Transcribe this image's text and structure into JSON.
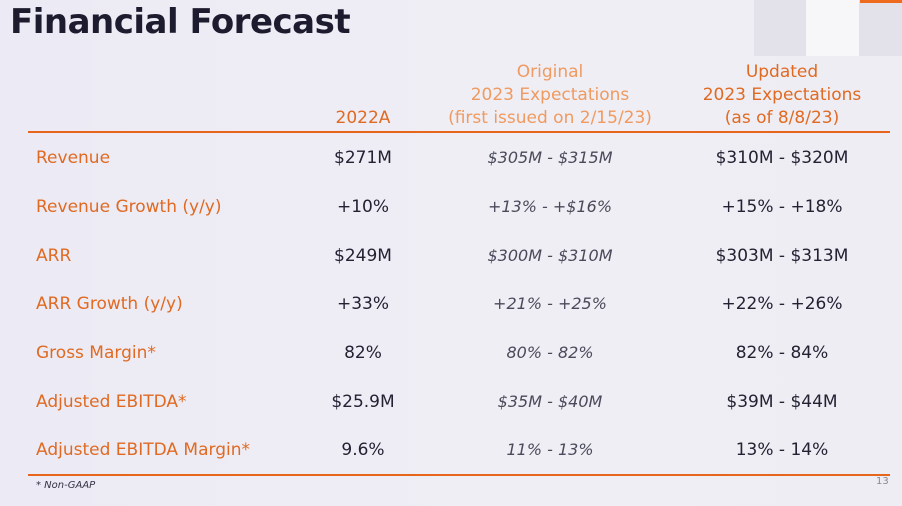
{
  "title": "Financial Forecast",
  "headers": {
    "col_2022": "2022A",
    "original": [
      "Original",
      "2023 Expectations",
      "(first issued on 2/15/23)"
    ],
    "updated": [
      "Updated",
      "2023 Expectations",
      "(as of 8/8/23)"
    ]
  },
  "rows": [
    {
      "label": "Revenue",
      "actual": "$271M",
      "original": "$305M - $315M",
      "updated": "$310M - $320M"
    },
    {
      "label": "Revenue Growth (y/y)",
      "actual": "+10%",
      "original": "+13% - +$16%",
      "updated": "+15% - +18%"
    },
    {
      "label": "ARR",
      "actual": "$249M",
      "original": "$300M - $310M",
      "updated": "$303M - $313M"
    },
    {
      "label": "ARR Growth (y/y)",
      "actual": "+33%",
      "original": "+21% - +25%",
      "updated": "+22% - +26%"
    },
    {
      "label": "Gross Margin*",
      "actual": "82%",
      "original": "80% - 82%",
      "updated": "82% - 84%"
    },
    {
      "label": "Adjusted EBITDA*",
      "actual": "$25.9M",
      "original": "$35M - $40M",
      "updated": "$39M - $44M"
    },
    {
      "label": "Adjusted EBITDA Margin*",
      "actual": "9.6%",
      "original": "11% - 13%",
      "updated": "13% - 14%"
    }
  ],
  "footnote": "* Non-GAAP",
  "page_number": "13",
  "colors": {
    "accent": "#e8651c",
    "label": "#e06a22",
    "original_header": "#ef9a60"
  }
}
